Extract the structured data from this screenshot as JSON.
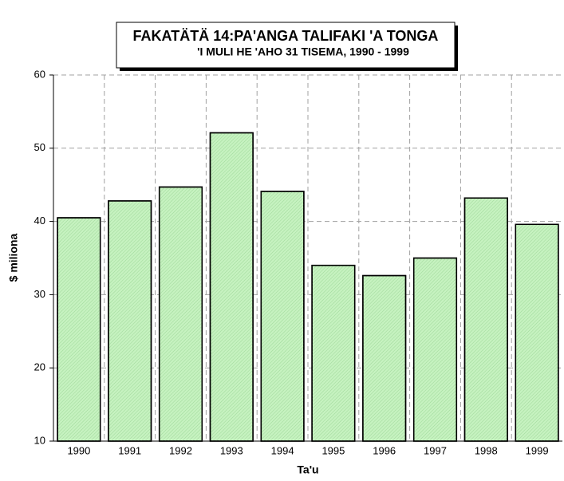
{
  "chart_data": {
    "type": "bar",
    "title": "FAKATÄTÄ 14:PA'ANGA TALIFAKI 'A TONGA",
    "subtitle": "'I MULI HE 'AHO 31 TISEMA, 1990 - 1999",
    "x_label": "Ta'u",
    "y_label": "$ miliona",
    "categories": [
      "1990",
      "1991",
      "1992",
      "1993",
      "1994",
      "1995",
      "1996",
      "1997",
      "1998",
      "1999"
    ],
    "values": [
      40.5,
      42.8,
      44.7,
      52.1,
      44.1,
      34.0,
      32.6,
      35.0,
      43.2,
      39.6
    ],
    "color": "#c6f2c0",
    "ylim": [
      10,
      60
    ],
    "yticks": [
      10,
      20,
      30,
      40,
      50,
      60
    ],
    "grid": true
  }
}
